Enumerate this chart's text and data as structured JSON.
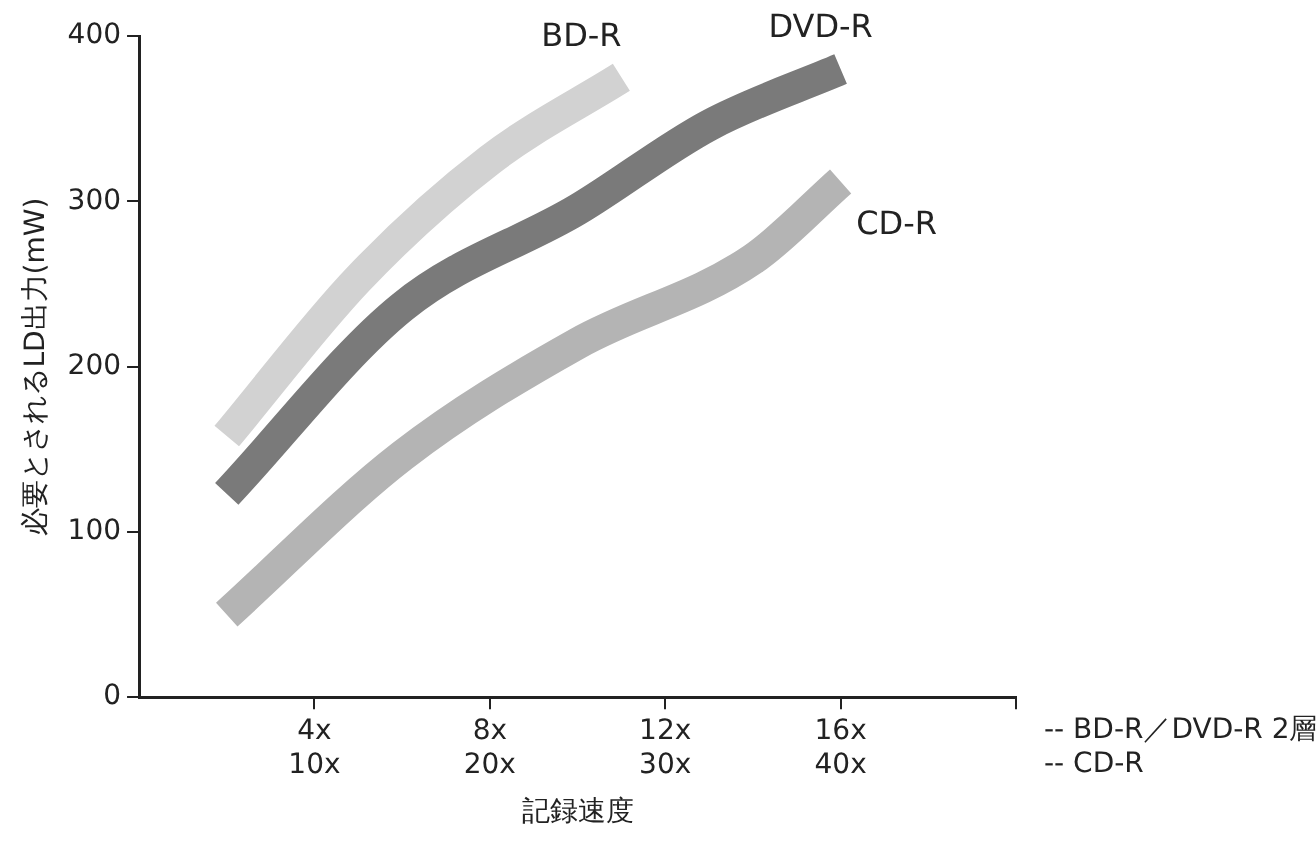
{
  "chart_data": {
    "type": "line",
    "xlabel": "記録速度",
    "ylabel": "必要とされるLD出力(mW)",
    "categories": [
      null,
      null,
      null,
      null,
      "4x\n10x",
      null,
      null,
      null,
      "8x\n20x",
      null,
      null,
      null,
      "12x\n30x",
      null,
      null,
      null,
      "16x\n40x",
      null,
      null,
      null,
      null
    ],
    "ylim": [
      0,
      400
    ],
    "yticks": [
      0,
      100,
      200,
      300,
      400
    ],
    "grid": false,
    "legend": false,
    "marker": "none",
    "line_style": "solid",
    "series": [
      {
        "name": "BD-R",
        "color": "#d2d2d2",
        "values": [
          null,
          null,
          158,
          null,
          null,
          253,
          null,
          null,
          325,
          null,
          null,
          375,
          null,
          null,
          null,
          null,
          null,
          null,
          null,
          null,
          null
        ]
      },
      {
        "name": "DVD-R",
        "color": "#7a7a7a",
        "values": [
          null,
          null,
          123,
          null,
          null,
          null,
          236,
          null,
          null,
          null,
          295,
          null,
          null,
          346,
          null,
          null,
          380,
          null,
          null,
          null,
          null
        ]
      },
      {
        "name": "CD-R",
        "color": "#b4b4b4",
        "values": [
          null,
          null,
          50,
          null,
          null,
          null,
          146,
          null,
          null,
          null,
          214,
          null,
          null,
          null,
          265,
          null,
          312,
          null,
          null,
          null,
          null
        ]
      }
    ],
    "annotations": [
      "-- BD-R／DVD-R 2層",
      "-- CD-R"
    ]
  }
}
